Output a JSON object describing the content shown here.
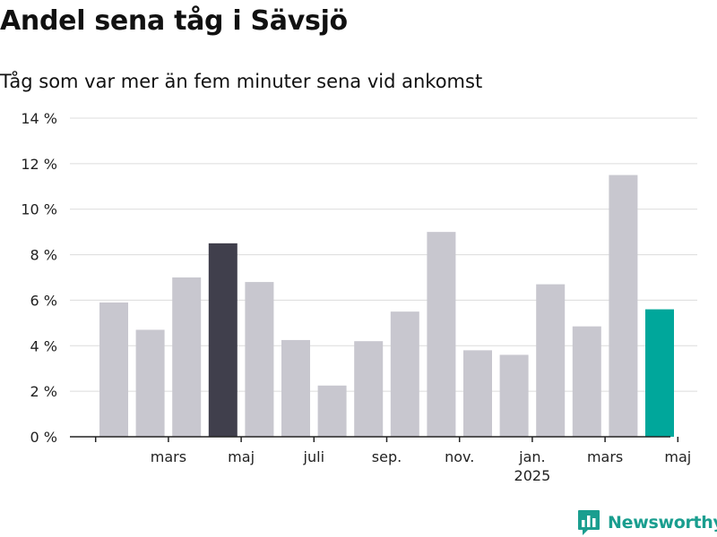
{
  "title": "Andel sena tåg i Sävsjö",
  "subtitle": "Tåg som var mer än fem minuter sena vid ankomst",
  "brand": {
    "name": "Newsworthy",
    "icon": "newsworthy-logo-icon",
    "color": "#1a9e8f"
  },
  "colors": {
    "bar": "#c8c7cf",
    "highlight_dark": "#403f4c",
    "highlight_latest": "#00a79b",
    "grid": "#dcdcdc",
    "axis": "#222222"
  },
  "chart_data": {
    "type": "bar",
    "title": "Andel sena tåg i Sävsjö",
    "subtitle": "Tåg som var mer än fem minuter sena vid ankomst",
    "ylim": [
      0,
      14
    ],
    "yticks": [
      0,
      2,
      4,
      6,
      8,
      10,
      12,
      14
    ],
    "ytick_labels": [
      "0 %",
      "2 %",
      "4 %",
      "6 %",
      "8 %",
      "10 %",
      "12 %",
      "14 %"
    ],
    "grid": true,
    "series": [
      {
        "values": [
          5.9,
          4.7,
          7.0,
          8.5,
          6.8,
          4.25,
          2.25,
          4.2,
          5.5,
          9.0,
          3.8,
          3.6,
          6.7,
          4.85,
          11.5,
          5.6
        ],
        "highlight": {
          "3": "dark",
          "15": "latest"
        }
      }
    ],
    "x_tick_labels": [
      {
        "index": 1.5,
        "label": "mars"
      },
      {
        "index": 3.5,
        "label": "maj"
      },
      {
        "index": 5.5,
        "label": "juli"
      },
      {
        "index": 7.5,
        "label": "sep."
      },
      {
        "index": 9.5,
        "label": "nov."
      },
      {
        "index": 11.5,
        "label": "jan.",
        "year": "2025"
      },
      {
        "index": 13.5,
        "label": "mars"
      },
      {
        "index": 15.5,
        "label": "maj"
      }
    ],
    "x_axis_ticks": [
      -0.5,
      1.5,
      3.5,
      5.5,
      7.5,
      9.5,
      11.5,
      13.5,
      15.5
    ]
  }
}
